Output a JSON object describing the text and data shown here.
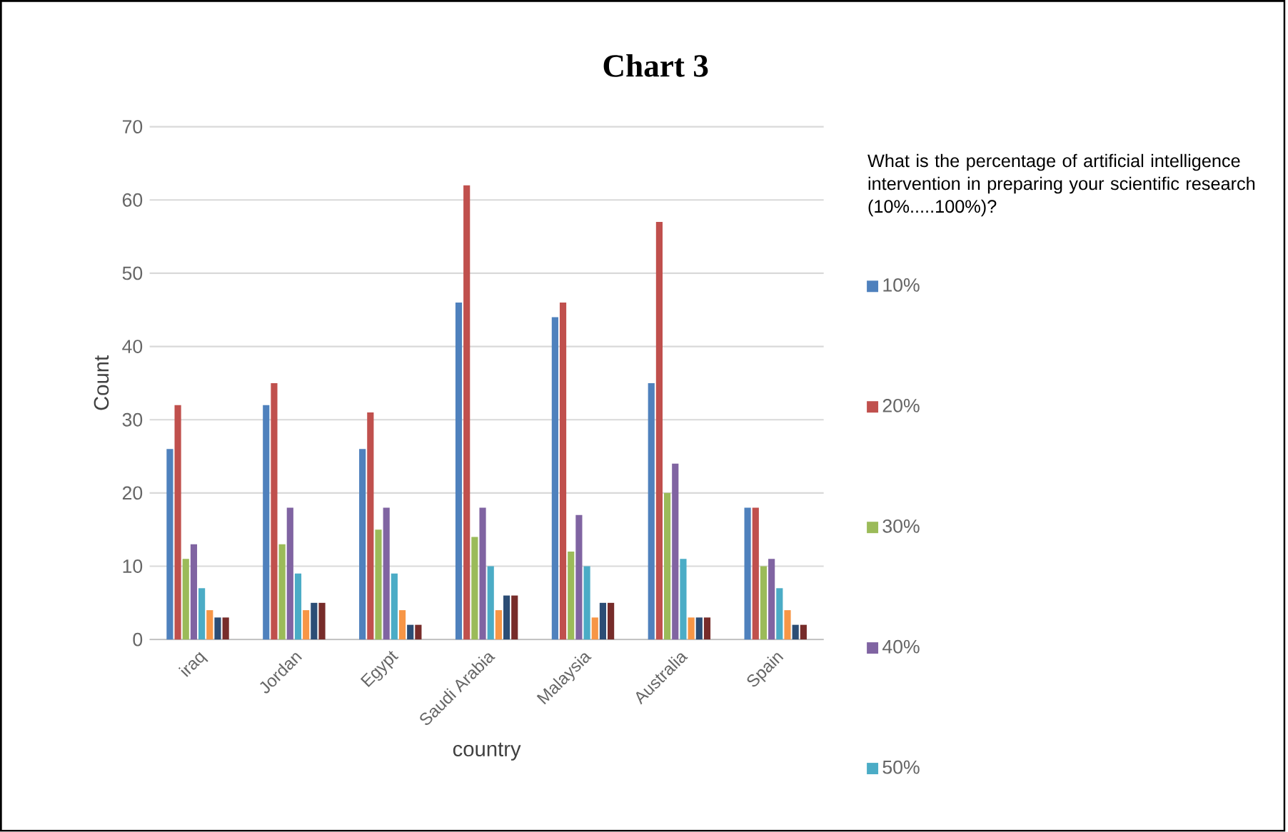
{
  "chart_data": {
    "type": "bar",
    "title": "Chart 3",
    "xlabel": "country",
    "ylabel": "Count",
    "legend_title": "What is the percentage of artificial intelligence intervention in preparing your scientific research (10%.....100%)?",
    "categories": [
      "iraq",
      "Jordan",
      "Egypt",
      "Saudi Arabia",
      "Malaysia",
      "Australia",
      "Spain"
    ],
    "series": [
      {
        "name": "10%",
        "color": "#4f81bd",
        "values": [
          26,
          32,
          26,
          46,
          44,
          35,
          18
        ]
      },
      {
        "name": "20%",
        "color": "#c0504d",
        "values": [
          32,
          35,
          31,
          62,
          46,
          57,
          18
        ]
      },
      {
        "name": "30%",
        "color": "#9bbb59",
        "values": [
          11,
          13,
          15,
          14,
          12,
          20,
          10
        ]
      },
      {
        "name": "40%",
        "color": "#8064a2",
        "values": [
          13,
          18,
          18,
          18,
          17,
          24,
          11
        ]
      },
      {
        "name": "50%",
        "color": "#4bacc6",
        "values": [
          7,
          9,
          9,
          10,
          10,
          11,
          7
        ]
      },
      {
        "color": "#f79646",
        "values": [
          4,
          4,
          4,
          4,
          3,
          3,
          4
        ]
      },
      {
        "color": "#2c4d75",
        "values": [
          3,
          5,
          2,
          6,
          5,
          3,
          2
        ]
      },
      {
        "color": "#772c2a",
        "values": [
          3,
          5,
          2,
          6,
          5,
          3,
          2
        ]
      }
    ],
    "ylim": [
      0,
      70
    ],
    "yticks": [
      0,
      10,
      20,
      30,
      40,
      50,
      60,
      70
    ],
    "grid": "y",
    "legend": "right"
  }
}
